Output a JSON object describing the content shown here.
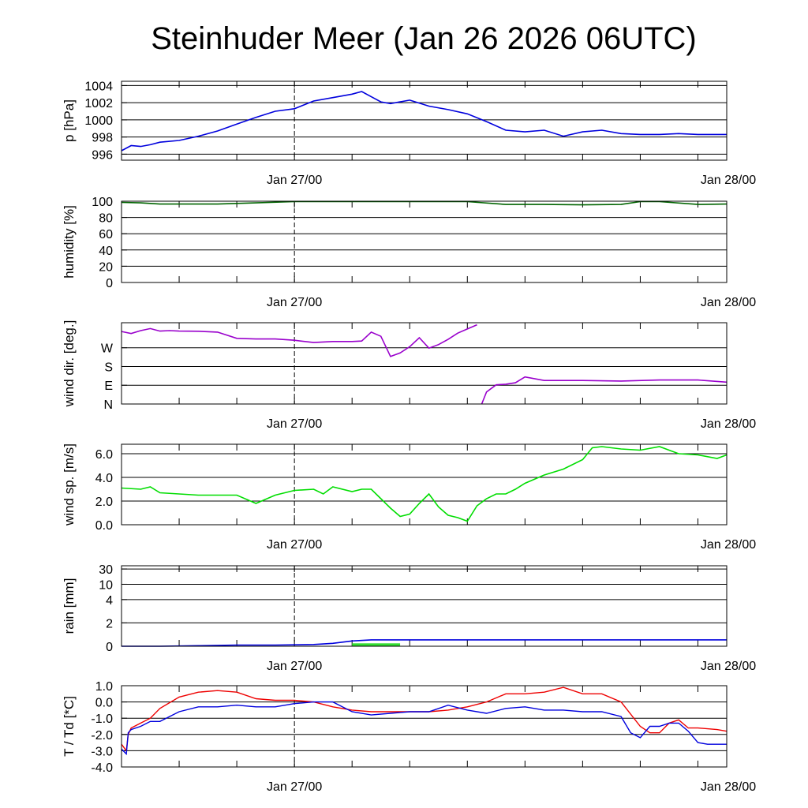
{
  "title": "Steinhuder Meer (Jan 26 2026 06UTC)",
  "x_tick_labels": [
    "Jan 27/00",
    "Jan 28/00"
  ],
  "colors": {
    "pressure": "#0000dd",
    "humidity": "#006400",
    "wind_dir": "#9900cc",
    "wind_dir_highlight": "#cc33ff",
    "wind_speed": "#00dd00",
    "rain_line": "#0000dd",
    "rain_bar": "#33dd33",
    "temperature": "#ee0000",
    "dewpoint": "#0000dd"
  },
  "chart_data": [
    {
      "type": "line",
      "name": "pressure",
      "ylabel": "p [hPa]",
      "ylim": [
        995.3,
        1004.5
      ],
      "yticks": [
        996,
        998,
        1000,
        1002,
        1004
      ],
      "ytick_labels": [
        "996",
        "998",
        "1000",
        "1002",
        "1004"
      ],
      "x_hours": [
        0,
        1,
        2,
        3,
        4,
        6,
        8,
        10,
        12,
        14,
        16,
        18,
        20,
        22,
        24,
        25,
        26,
        27,
        28,
        30,
        32,
        34,
        36,
        38,
        40,
        42,
        44,
        46,
        48,
        50,
        52,
        54,
        56,
        58,
        60,
        62,
        63
      ],
      "values": [
        996.4,
        997.0,
        996.9,
        997.1,
        997.4,
        997.6,
        998.1,
        998.7,
        999.5,
        1000.3,
        1001.0,
        1001.3,
        1002.2,
        1002.6,
        1003.0,
        1003.3,
        1002.7,
        1002.1,
        1001.9,
        1002.3,
        1001.6,
        1001.2,
        1000.7,
        999.8,
        998.8,
        998.6,
        998.8,
        998.1,
        998.6,
        998.8,
        998.4,
        998.3,
        998.3,
        998.4,
        998.3,
        998.3,
        998.3
      ],
      "series": [
        {
          "name": "pressure",
          "color_key": "pressure"
        }
      ]
    },
    {
      "type": "line",
      "name": "humidity",
      "ylabel": "humidity [%]",
      "ylim": [
        0,
        100
      ],
      "yticks": [
        0,
        20,
        40,
        60,
        80,
        100
      ],
      "ytick_labels": [
        "0",
        "20",
        "40",
        "60",
        "80",
        "100"
      ],
      "x_hours": [
        0,
        2,
        4,
        6,
        8,
        10,
        14,
        18,
        22,
        24,
        28,
        32,
        36,
        40,
        44,
        48,
        52,
        54,
        56,
        60,
        63
      ],
      "values": [
        98.5,
        98,
        96.5,
        96.5,
        96.5,
        96.5,
        98,
        99.5,
        99.5,
        99.5,
        99.5,
        99.5,
        99.5,
        96,
        96,
        95.5,
        96,
        99.5,
        99.5,
        96,
        96.5
      ],
      "series": [
        {
          "name": "relative humidity",
          "color_key": "humidity"
        }
      ]
    },
    {
      "type": "line",
      "name": "wind_direction",
      "ylabel": "wind dir. [deg.]",
      "ylim": [
        0,
        390
      ],
      "yticks": [
        0,
        90,
        180,
        270
      ],
      "ytick_labels": [
        "N",
        "E",
        "S",
        "W"
      ],
      "segments": [
        {
          "x_hours": [
            0,
            1,
            2,
            3,
            4,
            5,
            6,
            8,
            10,
            12,
            14,
            16,
            18,
            20,
            22,
            24,
            25,
            26,
            27,
            28,
            29,
            30,
            31,
            32,
            33,
            34,
            35,
            36,
            37
          ],
          "values": [
            348,
            338,
            352,
            362,
            350,
            352,
            350,
            349,
            345,
            315,
            312,
            312,
            306,
            295,
            300,
            300,
            302,
            345,
            325,
            228,
            245,
            275,
            318,
            268,
            285,
            310,
            340,
            360,
            380
          ]
        },
        {
          "x_hours": [
            37.5,
            38,
            39,
            40,
            41,
            42,
            44,
            48,
            52,
            56,
            60,
            63
          ],
          "values": [
            0,
            58,
            92,
            95,
            102,
            130,
            113,
            113,
            110,
            115,
            115,
            105
          ]
        }
      ],
      "series": [
        {
          "name": "wind direction",
          "color_key": "wind_dir"
        }
      ]
    },
    {
      "type": "line",
      "name": "wind_speed",
      "ylabel": "wind sp. [m/s]",
      "ylim": [
        0,
        6.8
      ],
      "yticks": [
        0,
        2,
        4,
        6
      ],
      "ytick_labels": [
        "0.0",
        "2.0",
        "4.0",
        "6.0"
      ],
      "x_hours": [
        0,
        2,
        3,
        4,
        6,
        8,
        10,
        12,
        14,
        16,
        18,
        20,
        21,
        22,
        24,
        25,
        26,
        27,
        28,
        29,
        30,
        31,
        32,
        33,
        34,
        35,
        36,
        37,
        38,
        39,
        40,
        41,
        42,
        44,
        46,
        48,
        49,
        50,
        52,
        54,
        56,
        58,
        60,
        62,
        63
      ],
      "values": [
        3.1,
        3.0,
        3.2,
        2.7,
        2.6,
        2.5,
        2.5,
        2.5,
        1.8,
        2.5,
        2.9,
        3.0,
        2.6,
        3.2,
        2.8,
        3.0,
        3.0,
        2.2,
        1.4,
        0.7,
        0.9,
        1.8,
        2.6,
        1.5,
        0.8,
        0.6,
        0.3,
        1.6,
        2.2,
        2.6,
        2.6,
        3.0,
        3.5,
        4.2,
        4.7,
        5.5,
        6.5,
        6.6,
        6.4,
        6.3,
        6.6,
        6.0,
        5.9,
        5.6,
        5.9
      ],
      "series": [
        {
          "name": "wind speed",
          "color_key": "wind_speed"
        }
      ]
    },
    {
      "type": "line",
      "name": "rain",
      "ylabel": "rain [mm]",
      "yticks": [
        0,
        2,
        4,
        10,
        30
      ],
      "ytick_labels": [
        "0",
        "2",
        "4",
        "10",
        "30"
      ],
      "ytick_positions": [
        0,
        0.29,
        0.58,
        0.77,
        0.96
      ],
      "line": {
        "name": "accumulated rain",
        "color_key": "rain_line",
        "x_hours": [
          0,
          4,
          8,
          12,
          16,
          20,
          22,
          24,
          26,
          30,
          40,
          50,
          63
        ],
        "values": [
          0,
          0,
          0.05,
          0.1,
          0.1,
          0.15,
          0.25,
          0.45,
          0.55,
          0.55,
          0.55,
          0.55,
          0.55
        ]
      },
      "bars": {
        "name": "hourly rain",
        "color_key": "rain_bar",
        "x_start_hours": [
          24
        ],
        "x_end_hours": [
          29
        ],
        "values": [
          0.25
        ]
      }
    },
    {
      "type": "line",
      "name": "temperature_dewpoint",
      "ylabel": "T / Td [*C]",
      "ylim": [
        -4.0,
        1.0
      ],
      "yticks": [
        -4,
        -3,
        -2,
        -1,
        0,
        1
      ],
      "ytick_labels": [
        "-4.0",
        "-3.0",
        "-2.0",
        "-1.0",
        "0.0",
        "1.0"
      ],
      "series": [
        {
          "name": "T",
          "color_key": "temperature",
          "x_hours": [
            0,
            0.5,
            0.7,
            1,
            2,
            3,
            4,
            6,
            8,
            10,
            12,
            14,
            16,
            18,
            20,
            22,
            24,
            26,
            28,
            30,
            32,
            34,
            36,
            38,
            40,
            42,
            44,
            46,
            48,
            50,
            52,
            54,
            55,
            56,
            57,
            58,
            59,
            60,
            62,
            63
          ],
          "values": [
            -2.6,
            -3.0,
            -2.0,
            -1.6,
            -1.3,
            -1.0,
            -0.4,
            0.3,
            0.6,
            0.7,
            0.6,
            0.2,
            0.1,
            0.1,
            0.0,
            -0.3,
            -0.5,
            -0.6,
            -0.6,
            -0.6,
            -0.6,
            -0.5,
            -0.3,
            0.0,
            0.5,
            0.5,
            0.6,
            0.9,
            0.5,
            0.5,
            0.0,
            -1.5,
            -1.9,
            -1.9,
            -1.3,
            -1.1,
            -1.6,
            -1.6,
            -1.7,
            -1.8
          ]
        },
        {
          "name": "Td",
          "color_key": "dewpoint",
          "x_hours": [
            0,
            0.5,
            0.7,
            1,
            2,
            3,
            4,
            6,
            8,
            10,
            12,
            14,
            16,
            18,
            20,
            22,
            24,
            26,
            28,
            30,
            32,
            34,
            36,
            38,
            40,
            42,
            44,
            46,
            48,
            50,
            52,
            53,
            54,
            55,
            56,
            57,
            58,
            59,
            60,
            61,
            62,
            63
          ],
          "values": [
            -2.9,
            -3.2,
            -1.9,
            -1.7,
            -1.5,
            -1.2,
            -1.2,
            -0.6,
            -0.3,
            -0.3,
            -0.2,
            -0.3,
            -0.3,
            -0.1,
            0.0,
            0.0,
            -0.6,
            -0.8,
            -0.7,
            -0.6,
            -0.6,
            -0.2,
            -0.5,
            -0.7,
            -0.4,
            -0.3,
            -0.5,
            -0.5,
            -0.6,
            -0.6,
            -0.9,
            -1.9,
            -2.2,
            -1.5,
            -1.5,
            -1.3,
            -1.3,
            -1.8,
            -2.5,
            -2.6,
            -2.6,
            -2.6
          ]
        }
      ]
    }
  ]
}
